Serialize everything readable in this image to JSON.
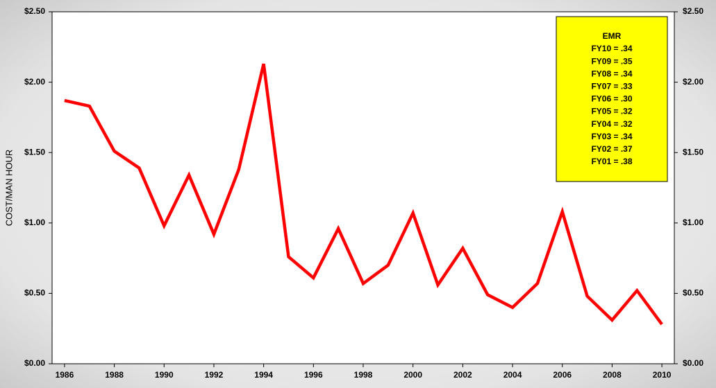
{
  "chart_data": {
    "type": "line",
    "y_label": "COST/MAN HOUR",
    "x": [
      1986,
      1987,
      1988,
      1989,
      1990,
      1991,
      1992,
      1993,
      1994,
      1995,
      1996,
      1997,
      1998,
      1999,
      2000,
      2001,
      2002,
      2003,
      2004,
      2005,
      2006,
      2007,
      2008,
      2009,
      2010
    ],
    "series": [
      {
        "color": "#ff0000",
        "values": [
          1.87,
          1.83,
          1.51,
          1.39,
          0.98,
          1.34,
          0.92,
          1.38,
          2.13,
          0.76,
          0.61,
          0.96,
          0.57,
          0.7,
          1.07,
          0.56,
          0.82,
          0.49,
          0.4,
          0.57,
          1.08,
          0.48,
          0.31,
          0.52,
          0.28
        ]
      }
    ],
    "xlim": [
      1985.5,
      2010.5
    ],
    "xticks": [
      1986,
      1988,
      1990,
      1992,
      1994,
      1996,
      1998,
      2000,
      2002,
      2004,
      2006,
      2008,
      2010
    ],
    "ylim": [
      0,
      2.5
    ],
    "yticks": [
      {
        "value": 0,
        "label": "$0.00"
      },
      {
        "value": 0.5,
        "label": "$0.50"
      },
      {
        "value": 1,
        "label": "$1.00"
      },
      {
        "value": 1.5,
        "label": "$1.50"
      },
      {
        "value": 2,
        "label": "$2.00"
      },
      {
        "value": 2.5,
        "label": "$2.50"
      }
    ],
    "y2lim": [
      0,
      2.5
    ],
    "y2ticks": [
      {
        "value": 0,
        "label": "$0.00"
      },
      {
        "value": 0.5,
        "label": "$0.50"
      },
      {
        "value": 1,
        "label": "$1.00"
      },
      {
        "value": 1.5,
        "label": "$1.50"
      },
      {
        "value": 2,
        "label": "$2.00"
      },
      {
        "value": 2.5,
        "label": "$2.50"
      }
    ],
    "annotation": {
      "color": "#ffff00",
      "title": "EMR",
      "lines": [
        "FY10 = .34",
        "FY09 = .35",
        "FY08 = .34",
        "FY07 = .33",
        "FY06 = .30",
        "FY05 = .32",
        "FY04 = .32",
        "FY03 = .34",
        "FY02 = .37",
        "FY01 = .38"
      ]
    }
  }
}
